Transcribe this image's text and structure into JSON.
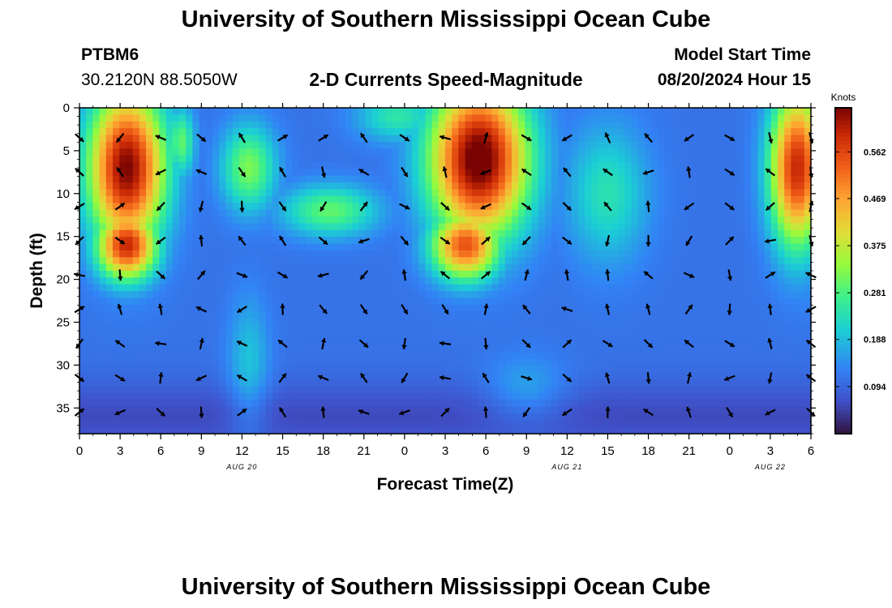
{
  "header": {
    "title": "University of Southern Mississippi Ocean Cube",
    "station_id": "PTBM6",
    "station_coords": "30.2120N  88.5050W",
    "subtitle": "2-D Currents Speed-Magnitude",
    "model_start_label": "Model Start Time",
    "model_start_value": "08/20/2024 Hour 15"
  },
  "footer": {
    "title": "University of Southern Mississippi Ocean Cube"
  },
  "chart_data": {
    "type": "heatmap",
    "xlabel": "Forecast Time(Z)",
    "ylabel": "Depth (ft)",
    "x_tick_labels": [
      "0",
      "3",
      "6",
      "9",
      "12",
      "15",
      "18",
      "21",
      "0",
      "3",
      "6",
      "9",
      "12",
      "15",
      "18",
      "21",
      "0",
      "3",
      "6"
    ],
    "x_range_hours": [
      0,
      54
    ],
    "date_labels": [
      {
        "text": "AUG 20",
        "hour": 12
      },
      {
        "text": "AUG 21",
        "hour": 36
      },
      {
        "text": "AUG 22",
        "hour": 51
      }
    ],
    "y_tick_labels": [
      "0",
      "5",
      "10",
      "15",
      "20",
      "25",
      "30",
      "35"
    ],
    "y_ticks": [
      0,
      5,
      10,
      15,
      20,
      25,
      30,
      35
    ],
    "ylim": [
      38,
      0
    ],
    "colorbar": {
      "title": "Knots",
      "tick_labels": [
        "0.562",
        "0.469",
        "0.375",
        "0.281",
        "0.188",
        "0.094"
      ],
      "tick_values": [
        0.562,
        0.469,
        0.375,
        0.281,
        0.188,
        0.094
      ],
      "range": [
        0.0,
        0.65
      ],
      "colormap": "turbo"
    },
    "speed_blobs_knots": [
      {
        "hour": 3.5,
        "depth": 7,
        "speed": 0.65,
        "hour_spread": 2.8,
        "depth_spread": 9
      },
      {
        "hour": 3.5,
        "depth": 16,
        "speed": 0.6,
        "hour_spread": 2.2,
        "depth_spread": 4
      },
      {
        "hour": 12.5,
        "depth": 7,
        "speed": 0.32,
        "hour_spread": 2.0,
        "depth_spread": 5
      },
      {
        "hour": 18.5,
        "depth": 12,
        "speed": 0.3,
        "hour_spread": 3.5,
        "depth_spread": 3
      },
      {
        "hour": 23.5,
        "depth": 1,
        "speed": 0.25,
        "hour_spread": 3.0,
        "depth_spread": 3
      },
      {
        "hour": 29.5,
        "depth": 6,
        "speed": 0.68,
        "hour_spread": 3.6,
        "depth_spread": 9
      },
      {
        "hour": 28.5,
        "depth": 16,
        "speed": 0.55,
        "hour_spread": 2.5,
        "depth_spread": 4
      },
      {
        "hour": 53.0,
        "depth": 7,
        "speed": 0.6,
        "hour_spread": 2.0,
        "depth_spread": 9
      },
      {
        "hour": 39.0,
        "depth": 10,
        "speed": 0.24,
        "hour_spread": 3.0,
        "depth_spread": 8
      },
      {
        "hour": 1.0,
        "depth": 2,
        "speed": 0.22,
        "hour_spread": 0.8,
        "depth_spread": 3
      },
      {
        "hour": 7.5,
        "depth": 4,
        "speed": 0.3,
        "hour_spread": 1.0,
        "depth_spread": 4
      },
      {
        "hour": 12.5,
        "depth": 30,
        "speed": 0.2,
        "hour_spread": 1.5,
        "depth_spread": 8
      },
      {
        "hour": 33.0,
        "depth": 33,
        "speed": 0.18,
        "hour_spread": 3.0,
        "depth_spread": 4
      }
    ],
    "arrow_grid": {
      "hours": [
        0,
        3,
        6,
        9,
        12,
        15,
        18,
        21,
        24,
        27,
        30,
        33,
        36,
        39,
        42,
        45,
        48,
        51,
        54
      ],
      "depths": [
        3.5,
        7.5,
        11.5,
        15.5,
        19.5,
        23.5,
        27.5,
        31.5,
        35.5
      ],
      "direction_seed": 17
    }
  }
}
